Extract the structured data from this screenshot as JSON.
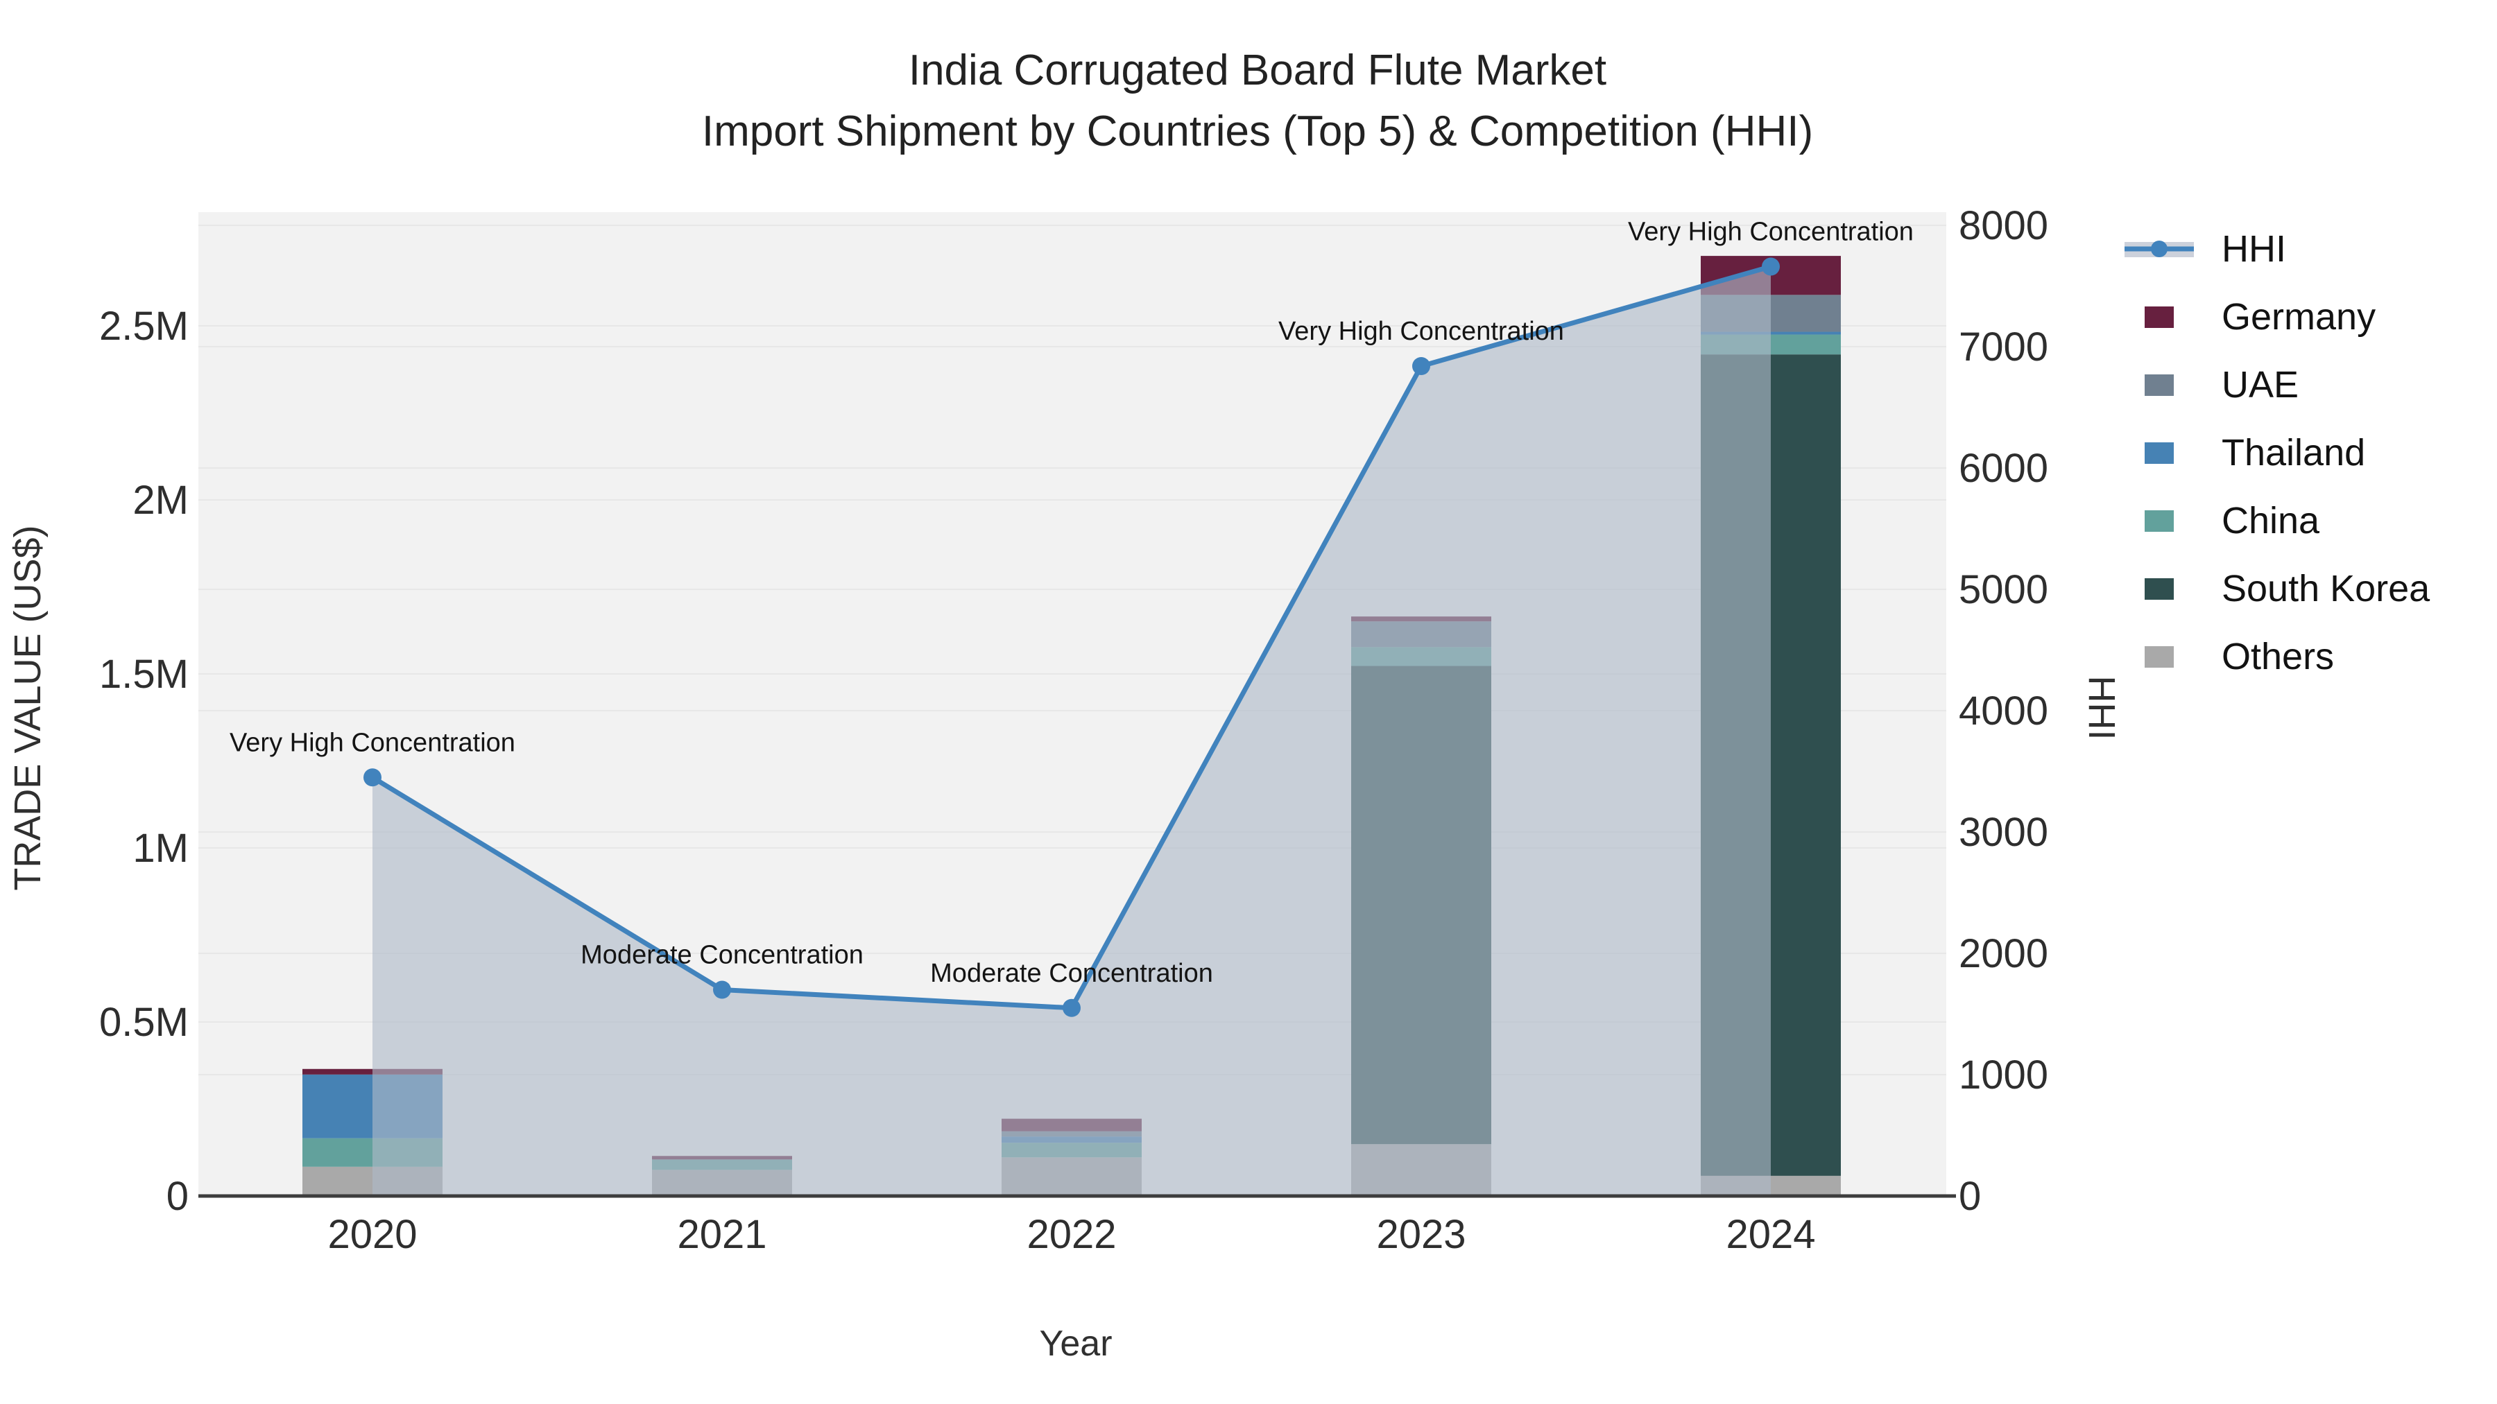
{
  "title": {
    "line1": "India Corrugated Board Flute Market",
    "line2": "Import Shipment by Countries (Top 5) & Competition (HHI)"
  },
  "axes": {
    "x_title": "Year",
    "left_title": "TRADE VALUE (US$)",
    "right_title": "HHI",
    "x_tick_labels": [
      "2020",
      "2021",
      "2022",
      "2023",
      "2024"
    ],
    "left_tick_labels": [
      "0",
      "0.5M",
      "1M",
      "1.5M",
      "2M",
      "2.5M"
    ],
    "left_tick_values_musd": [
      0,
      0.5,
      1,
      1.5,
      2,
      2.5
    ],
    "right_tick_labels": [
      "0",
      "1000",
      "2000",
      "3000",
      "4000",
      "5000",
      "6000",
      "7000",
      "8000"
    ],
    "right_tick_values": [
      0,
      1000,
      2000,
      3000,
      4000,
      5000,
      6000,
      7000,
      8000
    ]
  },
  "legend": {
    "items": [
      {
        "label": "HHI",
        "type": "line",
        "color": "#4183bd"
      },
      {
        "label": "Germany",
        "type": "swatch",
        "color": "#67203f"
      },
      {
        "label": "UAE",
        "type": "swatch",
        "color": "#708090"
      },
      {
        "label": "Thailand",
        "type": "swatch",
        "color": "#4682b4"
      },
      {
        "label": "China",
        "type": "swatch",
        "color": "#62a19c"
      },
      {
        "label": "South Korea",
        "type": "swatch",
        "color": "#2f4f4f"
      },
      {
        "label": "Others",
        "type": "swatch",
        "color": "#a9a9a9"
      }
    ]
  },
  "annotations": [
    {
      "year": "2020",
      "text": "Very High Concentration"
    },
    {
      "year": "2021",
      "text": "Moderate Concentration"
    },
    {
      "year": "2022",
      "text": "Moderate Concentration"
    },
    {
      "year": "2023",
      "text": "Very High Concentration"
    },
    {
      "year": "2024",
      "text": "Very High Concentration"
    }
  ],
  "chart_data": {
    "type": "bar+line",
    "categories": [
      "2020",
      "2021",
      "2022",
      "2023",
      "2024"
    ],
    "bar_unit": "Trade value, millions US$ (left axis)",
    "series": [
      {
        "name": "Germany",
        "type": "bar",
        "color": "#67203f",
        "values_musd": [
          0.016,
          0.01,
          0.036,
          0.014,
          0.112
        ]
      },
      {
        "name": "UAE",
        "type": "bar",
        "color": "#708090",
        "values_musd": [
          0,
          0,
          0.015,
          0.074,
          0.106
        ]
      },
      {
        "name": "Thailand",
        "type": "bar",
        "color": "#4682b4",
        "values_musd": [
          0.183,
          0,
          0.018,
          0,
          0.008
        ]
      },
      {
        "name": "China",
        "type": "bar",
        "color": "#62a19c",
        "values_musd": [
          0.082,
          0.03,
          0.042,
          0.054,
          0.057
        ]
      },
      {
        "name": "South Korea",
        "type": "bar",
        "color": "#2f4f4f",
        "values_musd": [
          0,
          0,
          0,
          1.374,
          2.36
        ]
      },
      {
        "name": "Others",
        "type": "bar",
        "color": "#a9a9a9",
        "values_musd": [
          0.084,
          0.075,
          0.111,
          0.149,
          0.058
        ]
      }
    ],
    "bar_totals_musd": [
      0.365,
      0.115,
      0.222,
      1.665,
      2.701
    ],
    "stack_order_bottom_up": [
      "Others",
      "South Korea",
      "China",
      "Thailand",
      "UAE",
      "Germany"
    ],
    "hhi_series": {
      "name": "HHI",
      "type": "line",
      "color": "#4183bd",
      "marker": "circle",
      "area_fill": "rgba(175,185,200,0.62)",
      "values": [
        3450,
        1700,
        1550,
        6840,
        7660
      ]
    },
    "ylim_left_musd": [
      0,
      2.83
    ],
    "ylim_right_hhi": [
      0,
      8000
    ],
    "grid": "on",
    "legend_position": "right",
    "plot_bg": "#f2f2f2",
    "grid_color": "#e7e7e7",
    "zeroline_color": "#3d3d3d"
  }
}
